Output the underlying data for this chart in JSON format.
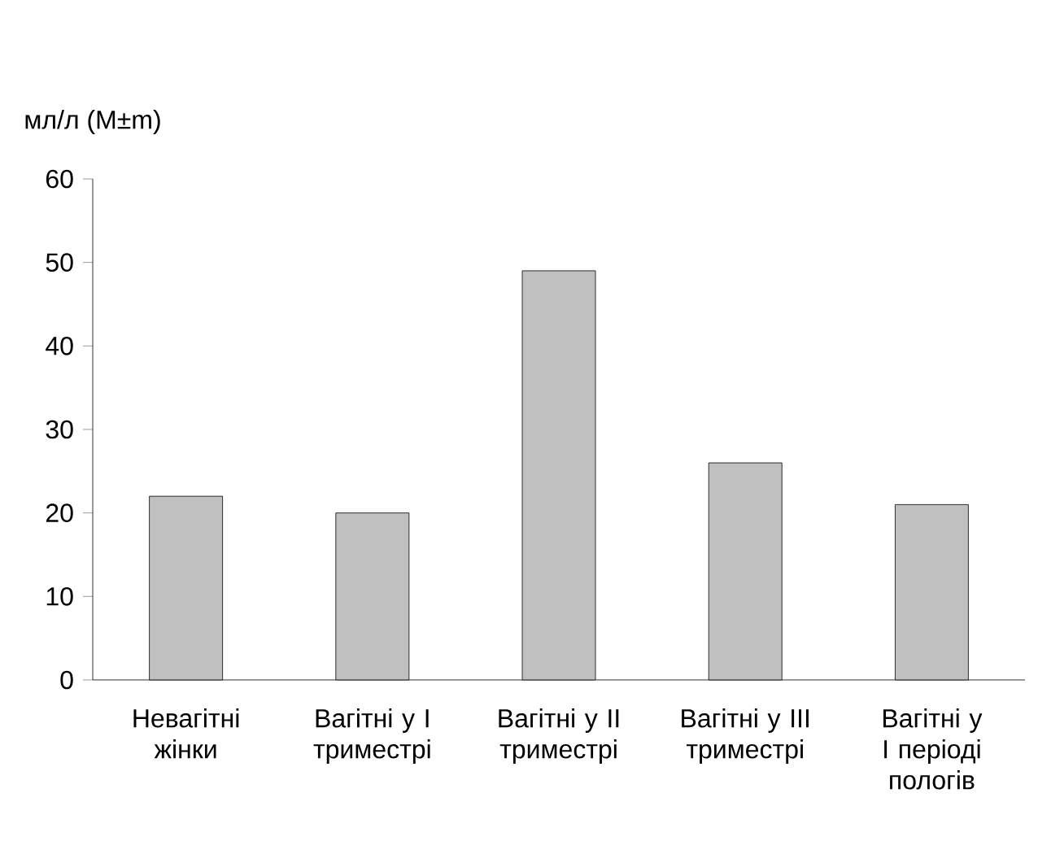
{
  "chart_data": {
    "type": "bar",
    "ylabel": "мл/л (M±m)",
    "categories": [
      "Невагітні жінки",
      "Вагітні у I триместрі",
      "Вагітні у II триместрі",
      "Вагітні у III триместрі",
      "Вагітні у I періоді пологів"
    ],
    "values": [
      22,
      20,
      49,
      26,
      21
    ],
    "color": "#c0c0c0",
    "ylim": [
      0,
      60
    ],
    "yticks": [
      0,
      10,
      20,
      30,
      40,
      50,
      60
    ],
    "grid": false
  }
}
